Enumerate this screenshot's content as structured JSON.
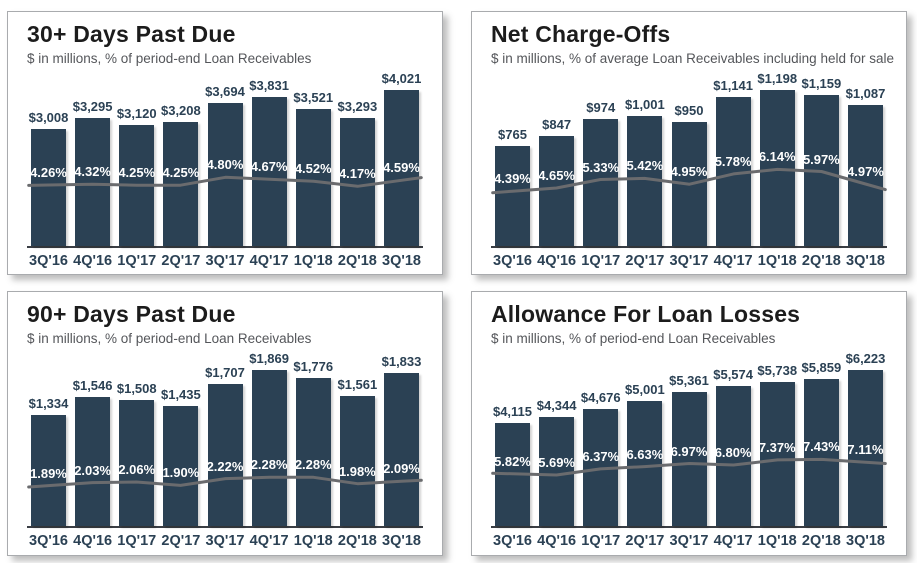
{
  "page": {
    "background": "#ffffff"
  },
  "colors": {
    "bar_fill": "#2b4154",
    "trend_line": "#6a6b6e",
    "title_text": "#1c1c1c",
    "subtitle_text": "#54565a",
    "value_label_text": "#2b4154",
    "pct_label_text": "#ffffff",
    "axis_line": "#3a3e44",
    "x_label_text": "#2b4154",
    "panel_border": "#a9abae"
  },
  "categories": [
    "3Q'16",
    "4Q'16",
    "1Q'17",
    "2Q'17",
    "3Q'17",
    "4Q'17",
    "1Q'18",
    "2Q'18",
    "3Q'18"
  ],
  "chart_data": [
    {
      "type": "bar",
      "title": "30+ Days Past Due",
      "subtitle": "$ in millions, % of period-end Loan Receivables",
      "categories": [
        "3Q'16",
        "4Q'16",
        "1Q'17",
        "2Q'17",
        "3Q'17",
        "4Q'17",
        "1Q'18",
        "2Q'18",
        "3Q'18"
      ],
      "series": [
        {
          "name": "Dollars ($ in millions)",
          "render": "bar",
          "unit": "$",
          "values": [
            3008,
            3295,
            3120,
            3208,
            3694,
            3831,
            3521,
            3293,
            4021
          ]
        },
        {
          "name": "% of period-end Loan Receivables",
          "render": "line",
          "unit": "%",
          "values": [
            4.26,
            4.32,
            4.25,
            4.25,
            4.8,
            4.67,
            4.52,
            4.17,
            4.59
          ]
        }
      ],
      "value_axis_min": 0,
      "pct_axis_max": 10.9,
      "grid": false,
      "legend": "none"
    },
    {
      "type": "bar",
      "title": "Net Charge-Offs",
      "subtitle": "$ in millions, % of average Loan Receivables including held for sale",
      "categories": [
        "3Q'16",
        "4Q'16",
        "1Q'17",
        "2Q'17",
        "3Q'17",
        "4Q'17",
        "1Q'18",
        "2Q'18",
        "3Q'18"
      ],
      "series": [
        {
          "name": "Dollars ($ in millions)",
          "render": "bar",
          "unit": "$",
          "values": [
            765,
            847,
            974,
            1001,
            950,
            1141,
            1198,
            1159,
            1087
          ]
        },
        {
          "name": "% of average Loan Receivables including held for sale",
          "render": "line",
          "unit": "%",
          "values": [
            4.39,
            4.65,
            5.33,
            5.42,
            4.95,
            5.78,
            6.14,
            5.97,
            4.97
          ]
        }
      ],
      "value_axis_min": 0,
      "pct_axis_max": 12.5,
      "grid": false,
      "legend": "none"
    },
    {
      "type": "bar",
      "title": "90+ Days Past Due",
      "subtitle": "$ in millions, % of period-end Loan Receivables",
      "categories": [
        "3Q'16",
        "4Q'16",
        "1Q'17",
        "2Q'17",
        "3Q'17",
        "4Q'17",
        "1Q'18",
        "2Q'18",
        "3Q'18"
      ],
      "series": [
        {
          "name": "Dollars ($ in millions)",
          "render": "bar",
          "unit": "$",
          "values": [
            1334,
            1546,
            1508,
            1435,
            1707,
            1869,
            1776,
            1561,
            1833
          ]
        },
        {
          "name": "% of period-end Loan Receivables",
          "render": "line",
          "unit": "%",
          "values": [
            1.89,
            2.03,
            2.06,
            1.9,
            2.22,
            2.28,
            2.28,
            1.98,
            2.09
          ]
        }
      ],
      "value_axis_min": 0,
      "pct_axis_max": 7.3,
      "grid": false,
      "legend": "none"
    },
    {
      "type": "bar",
      "title": "Allowance For Loan Losses",
      "subtitle": "$ in millions, % of period-end Loan Receivables",
      "categories": [
        "3Q'16",
        "4Q'16",
        "1Q'17",
        "2Q'17",
        "3Q'17",
        "4Q'17",
        "1Q'18",
        "2Q'18",
        "3Q'18"
      ],
      "series": [
        {
          "name": "Dollars ($ in millions)",
          "render": "bar",
          "unit": "$",
          "values": [
            4115,
            4344,
            4676,
            5001,
            5361,
            5574,
            5738,
            5859,
            6223
          ]
        },
        {
          "name": "% of period-end Loan Receivables",
          "render": "line",
          "unit": "%",
          "values": [
            5.82,
            5.69,
            6.37,
            6.63,
            6.97,
            6.8,
            7.37,
            7.43,
            7.11
          ]
        }
      ],
      "value_axis_min": 0,
      "pct_axis_max": 17.4,
      "grid": false,
      "legend": "none"
    }
  ]
}
